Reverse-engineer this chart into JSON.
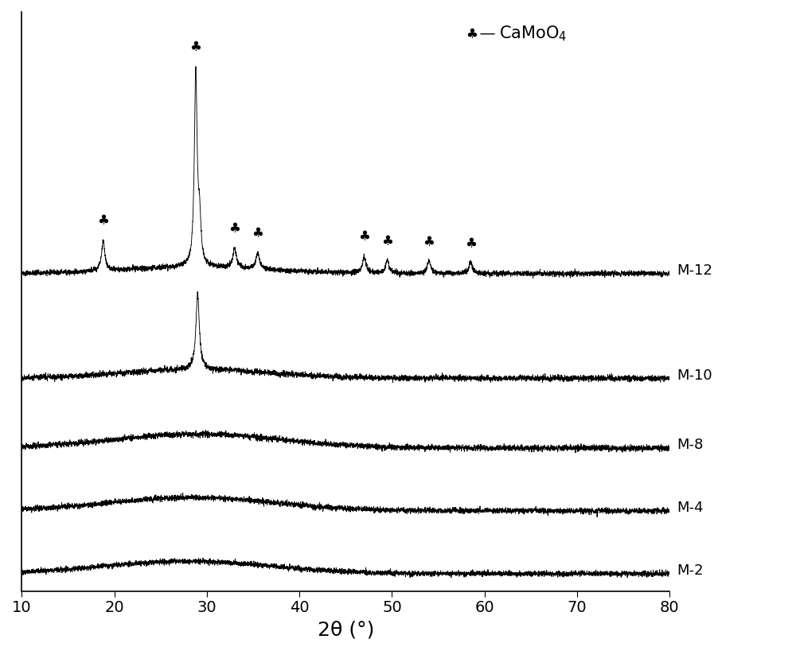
{
  "xlabel": "2θ (°)",
  "xlim": [
    10,
    80
  ],
  "xticks": [
    10,
    20,
    30,
    40,
    50,
    60,
    70,
    80
  ],
  "series_labels": [
    "M-12",
    "M-10",
    "M-8",
    "M-4",
    "M-2"
  ],
  "offsets": [
    9.0,
    6.0,
    4.0,
    2.2,
    0.4
  ],
  "legend_symbol": "♣",
  "legend_text": "CaMoO₄",
  "camoo4_peaks_m12": [
    18.8,
    28.8,
    33.0,
    35.5,
    47.0,
    49.5,
    54.0,
    58.5
  ],
  "peaks_m10": [
    29.0
  ],
  "background_color": "#ffffff",
  "line_color": "#000000",
  "label_fontsize": 16,
  "tick_fontsize": 14,
  "series_label_fontsize": 13
}
